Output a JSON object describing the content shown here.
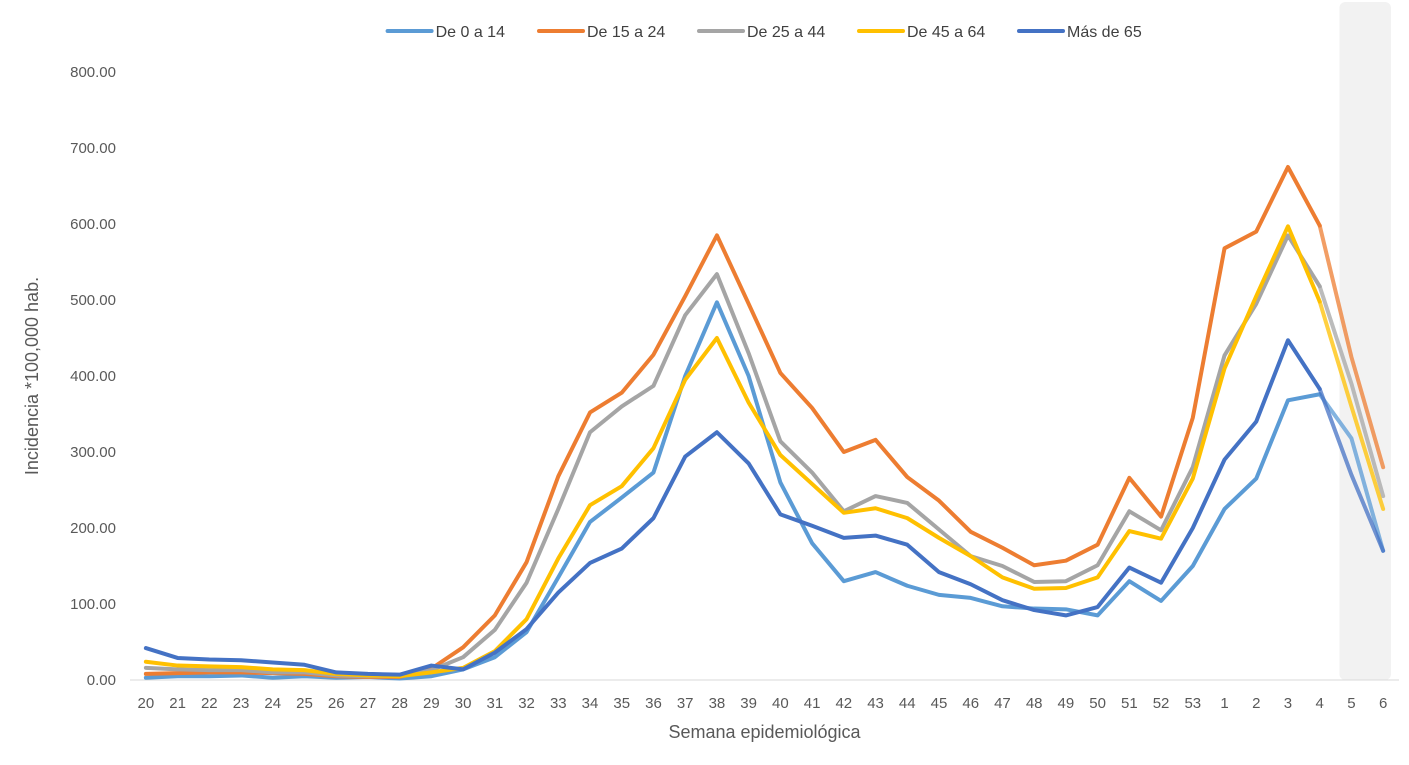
{
  "chart_data": {
    "type": "line",
    "title": "",
    "xlabel": "Semana epidemiológica",
    "ylabel": "Incidencia *100,000 hab.",
    "ylim": [
      0,
      800
    ],
    "y_ticks": [
      "0.00",
      "100.00",
      "200.00",
      "300.00",
      "400.00",
      "500.00",
      "600.00",
      "700.00",
      "800.00"
    ],
    "grid": false,
    "legend_position": "top",
    "shaded_from_category": "5",
    "shade_color": "#f2f2f2",
    "categories": [
      "20",
      "21",
      "22",
      "23",
      "24",
      "25",
      "26",
      "27",
      "28",
      "29",
      "30",
      "31",
      "32",
      "33",
      "34",
      "35",
      "36",
      "37",
      "38",
      "39",
      "40",
      "41",
      "42",
      "43",
      "44",
      "45",
      "46",
      "47",
      "48",
      "49",
      "50",
      "51",
      "52",
      "53",
      "1",
      "2",
      "3",
      "4",
      "5",
      "6"
    ],
    "series": [
      {
        "name": "De 0 a 14",
        "color": "#5b9bd5",
        "values": [
          3,
          5,
          5,
          6,
          3,
          5,
          3,
          4,
          2,
          5,
          14,
          30,
          63,
          135,
          208,
          240,
          273,
          400,
          497,
          400,
          260,
          180,
          130,
          142,
          124,
          112,
          108,
          97,
          94,
          93,
          85,
          130,
          104,
          150,
          225,
          265,
          368,
          376,
          318,
          170
        ]
      },
      {
        "name": "De 15 a 24",
        "color": "#ed7d31",
        "values": [
          8,
          9,
          10,
          10,
          9,
          8,
          5,
          4,
          4,
          15,
          43,
          85,
          155,
          268,
          352,
          378,
          428,
          505,
          585,
          495,
          404,
          358,
          300,
          316,
          267,
          236,
          195,
          174,
          151,
          157,
          178,
          266,
          215,
          345,
          568,
          590,
          675,
          598,
          425,
          280
        ]
      },
      {
        "name": "De 25 a 44",
        "color": "#a5a5a5",
        "values": [
          16,
          14,
          13,
          13,
          10,
          10,
          6,
          5,
          5,
          13,
          30,
          66,
          128,
          225,
          326,
          360,
          387,
          480,
          534,
          430,
          314,
          273,
          222,
          242,
          233,
          198,
          163,
          150,
          129,
          130,
          151,
          222,
          197,
          280,
          427,
          495,
          585,
          518,
          390,
          242
        ]
      },
      {
        "name": "De 45 a 64",
        "color": "#ffc000",
        "values": [
          24,
          19,
          18,
          17,
          14,
          13,
          8,
          6,
          5,
          10,
          16,
          38,
          80,
          160,
          230,
          255,
          305,
          395,
          450,
          365,
          296,
          258,
          220,
          226,
          213,
          187,
          163,
          135,
          120,
          121,
          135,
          196,
          186,
          265,
          410,
          505,
          597,
          498,
          360,
          225
        ]
      },
      {
        "name": "Más de 65",
        "color": "#4472c4",
        "values": [
          42,
          29,
          27,
          26,
          23,
          20,
          10,
          8,
          7,
          19,
          14,
          36,
          67,
          115,
          154,
          173,
          213,
          294,
          326,
          285,
          218,
          203,
          187,
          190,
          178,
          142,
          126,
          105,
          92,
          85,
          96,
          148,
          128,
          200,
          290,
          340,
          447,
          383,
          270,
          170
        ]
      }
    ]
  }
}
